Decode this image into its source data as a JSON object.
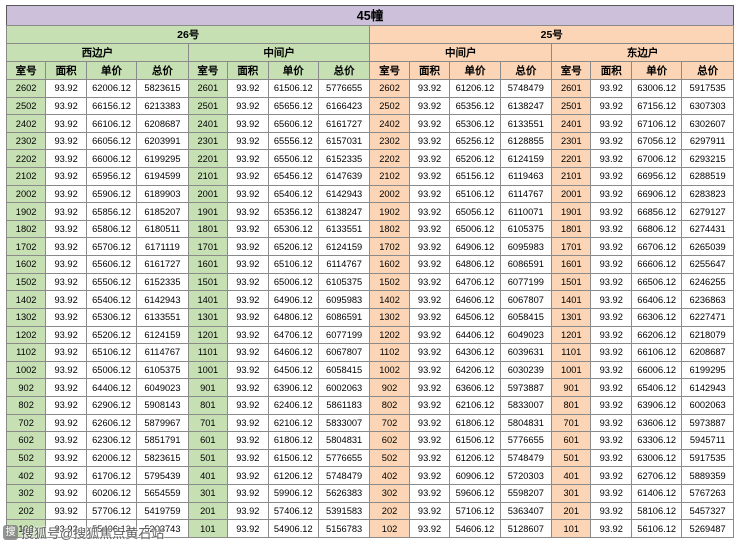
{
  "title": "45幢",
  "watermark": {
    "logo": "搜",
    "text": "搜狐号@搜狐焦点黄石站"
  },
  "colors": {
    "title_bg": "#CCC0DA",
    "green": "#C6E0B4",
    "orange": "#FBD5B5",
    "border": "#8a8a8a"
  },
  "table": {
    "columns": [
      "室号",
      "面积",
      "单价",
      "总价"
    ],
    "groups": [
      {
        "building": "26号",
        "units": [
          "西边户",
          "中间户"
        ]
      },
      {
        "building": "25号",
        "units": [
          "中间户",
          "东边户"
        ]
      }
    ],
    "rows": [
      [
        [
          "2602",
          "93.92",
          "62006.12",
          "5823615"
        ],
        [
          "2601",
          "93.92",
          "61506.12",
          "5776655"
        ],
        [
          "2602",
          "93.92",
          "61206.12",
          "5748479"
        ],
        [
          "2601",
          "93.92",
          "63006.12",
          "5917535"
        ]
      ],
      [
        [
          "2502",
          "93.92",
          "66156.12",
          "6213383"
        ],
        [
          "2501",
          "93.92",
          "65656.12",
          "6166423"
        ],
        [
          "2502",
          "93.92",
          "65356.12",
          "6138247"
        ],
        [
          "2501",
          "93.92",
          "67156.12",
          "6307303"
        ]
      ],
      [
        [
          "2402",
          "93.92",
          "66106.12",
          "6208687"
        ],
        [
          "2401",
          "93.92",
          "65606.12",
          "6161727"
        ],
        [
          "2402",
          "93.92",
          "65306.12",
          "6133551"
        ],
        [
          "2401",
          "93.92",
          "67106.12",
          "6302607"
        ]
      ],
      [
        [
          "2302",
          "93.92",
          "66056.12",
          "6203991"
        ],
        [
          "2301",
          "93.92",
          "65556.12",
          "6157031"
        ],
        [
          "2302",
          "93.92",
          "65256.12",
          "6128855"
        ],
        [
          "2301",
          "93.92",
          "67056.12",
          "6297911"
        ]
      ],
      [
        [
          "2202",
          "93.92",
          "66006.12",
          "6199295"
        ],
        [
          "2201",
          "93.92",
          "65506.12",
          "6152335"
        ],
        [
          "2202",
          "93.92",
          "65206.12",
          "6124159"
        ],
        [
          "2201",
          "93.92",
          "67006.12",
          "6293215"
        ]
      ],
      [
        [
          "2102",
          "93.92",
          "65956.12",
          "6194599"
        ],
        [
          "2101",
          "93.92",
          "65456.12",
          "6147639"
        ],
        [
          "2102",
          "93.92",
          "65156.12",
          "6119463"
        ],
        [
          "2101",
          "93.92",
          "66956.12",
          "6288519"
        ]
      ],
      [
        [
          "2002",
          "93.92",
          "65906.12",
          "6189903"
        ],
        [
          "2001",
          "93.92",
          "65406.12",
          "6142943"
        ],
        [
          "2002",
          "93.92",
          "65106.12",
          "6114767"
        ],
        [
          "2001",
          "93.92",
          "66906.12",
          "6283823"
        ]
      ],
      [
        [
          "1902",
          "93.92",
          "65856.12",
          "6185207"
        ],
        [
          "1901",
          "93.92",
          "65356.12",
          "6138247"
        ],
        [
          "1902",
          "93.92",
          "65056.12",
          "6110071"
        ],
        [
          "1901",
          "93.92",
          "66856.12",
          "6279127"
        ]
      ],
      [
        [
          "1802",
          "93.92",
          "65806.12",
          "6180511"
        ],
        [
          "1801",
          "93.92",
          "65306.12",
          "6133551"
        ],
        [
          "1802",
          "93.92",
          "65006.12",
          "6105375"
        ],
        [
          "1801",
          "93.92",
          "66806.12",
          "6274431"
        ]
      ],
      [
        [
          "1702",
          "93.92",
          "65706.12",
          "6171119"
        ],
        [
          "1701",
          "93.92",
          "65206.12",
          "6124159"
        ],
        [
          "1702",
          "93.92",
          "64906.12",
          "6095983"
        ],
        [
          "1701",
          "93.92",
          "66706.12",
          "6265039"
        ]
      ],
      [
        [
          "1602",
          "93.92",
          "65606.12",
          "6161727"
        ],
        [
          "1601",
          "93.92",
          "65106.12",
          "6114767"
        ],
        [
          "1602",
          "93.92",
          "64806.12",
          "6086591"
        ],
        [
          "1601",
          "93.92",
          "66606.12",
          "6255647"
        ]
      ],
      [
        [
          "1502",
          "93.92",
          "65506.12",
          "6152335"
        ],
        [
          "1501",
          "93.92",
          "65006.12",
          "6105375"
        ],
        [
          "1502",
          "93.92",
          "64706.12",
          "6077199"
        ],
        [
          "1501",
          "93.92",
          "66506.12",
          "6246255"
        ]
      ],
      [
        [
          "1402",
          "93.92",
          "65406.12",
          "6142943"
        ],
        [
          "1401",
          "93.92",
          "64906.12",
          "6095983"
        ],
        [
          "1402",
          "93.92",
          "64606.12",
          "6067807"
        ],
        [
          "1401",
          "93.92",
          "66406.12",
          "6236863"
        ]
      ],
      [
        [
          "1302",
          "93.92",
          "65306.12",
          "6133551"
        ],
        [
          "1301",
          "93.92",
          "64806.12",
          "6086591"
        ],
        [
          "1302",
          "93.92",
          "64506.12",
          "6058415"
        ],
        [
          "1301",
          "93.92",
          "66306.12",
          "6227471"
        ]
      ],
      [
        [
          "1202",
          "93.92",
          "65206.12",
          "6124159"
        ],
        [
          "1201",
          "93.92",
          "64706.12",
          "6077199"
        ],
        [
          "1202",
          "93.92",
          "64406.12",
          "6049023"
        ],
        [
          "1201",
          "93.92",
          "66206.12",
          "6218079"
        ]
      ],
      [
        [
          "1102",
          "93.92",
          "65106.12",
          "6114767"
        ],
        [
          "1101",
          "93.92",
          "64606.12",
          "6067807"
        ],
        [
          "1102",
          "93.92",
          "64306.12",
          "6039631"
        ],
        [
          "1101",
          "93.92",
          "66106.12",
          "6208687"
        ]
      ],
      [
        [
          "1002",
          "93.92",
          "65006.12",
          "6105375"
        ],
        [
          "1001",
          "93.92",
          "64506.12",
          "6058415"
        ],
        [
          "1002",
          "93.92",
          "64206.12",
          "6030239"
        ],
        [
          "1001",
          "93.92",
          "66006.12",
          "6199295"
        ]
      ],
      [
        [
          "902",
          "93.92",
          "64406.12",
          "6049023"
        ],
        [
          "901",
          "93.92",
          "63906.12",
          "6002063"
        ],
        [
          "902",
          "93.92",
          "63606.12",
          "5973887"
        ],
        [
          "901",
          "93.92",
          "65406.12",
          "6142943"
        ]
      ],
      [
        [
          "802",
          "93.92",
          "62906.12",
          "5908143"
        ],
        [
          "801",
          "93.92",
          "62406.12",
          "5861183"
        ],
        [
          "802",
          "93.92",
          "62106.12",
          "5833007"
        ],
        [
          "801",
          "93.92",
          "63906.12",
          "6002063"
        ]
      ],
      [
        [
          "702",
          "93.92",
          "62606.12",
          "5879967"
        ],
        [
          "701",
          "93.92",
          "62106.12",
          "5833007"
        ],
        [
          "702",
          "93.92",
          "61806.12",
          "5804831"
        ],
        [
          "701",
          "93.92",
          "63606.12",
          "5973887"
        ]
      ],
      [
        [
          "602",
          "93.92",
          "62306.12",
          "5851791"
        ],
        [
          "601",
          "93.92",
          "61806.12",
          "5804831"
        ],
        [
          "602",
          "93.92",
          "61506.12",
          "5776655"
        ],
        [
          "601",
          "93.92",
          "63306.12",
          "5945711"
        ]
      ],
      [
        [
          "502",
          "93.92",
          "62006.12",
          "5823615"
        ],
        [
          "501",
          "93.92",
          "61506.12",
          "5776655"
        ],
        [
          "502",
          "93.92",
          "61206.12",
          "5748479"
        ],
        [
          "501",
          "93.92",
          "63006.12",
          "5917535"
        ]
      ],
      [
        [
          "402",
          "93.92",
          "61706.12",
          "5795439"
        ],
        [
          "401",
          "93.92",
          "61206.12",
          "5748479"
        ],
        [
          "402",
          "93.92",
          "60906.12",
          "5720303"
        ],
        [
          "401",
          "93.92",
          "62706.12",
          "5889359"
        ]
      ],
      [
        [
          "302",
          "93.92",
          "60206.12",
          "5654559"
        ],
        [
          "301",
          "93.92",
          "59906.12",
          "5626383"
        ],
        [
          "302",
          "93.92",
          "59606.12",
          "5598207"
        ],
        [
          "301",
          "93.92",
          "61406.12",
          "5767263"
        ]
      ],
      [
        [
          "202",
          "93.92",
          "57706.12",
          "5419759"
        ],
        [
          "201",
          "93.92",
          "57406.12",
          "5391583"
        ],
        [
          "202",
          "93.92",
          "57106.12",
          "5363407"
        ],
        [
          "201",
          "93.92",
          "58106.12",
          "5457327"
        ]
      ],
      [
        [
          "102",
          "93.92",
          "55406.12",
          "5203743"
        ],
        [
          "101",
          "93.92",
          "54906.12",
          "5156783"
        ],
        [
          "102",
          "93.92",
          "54606.12",
          "5128607"
        ],
        [
          "101",
          "93.92",
          "56106.12",
          "5269487"
        ]
      ]
    ]
  }
}
